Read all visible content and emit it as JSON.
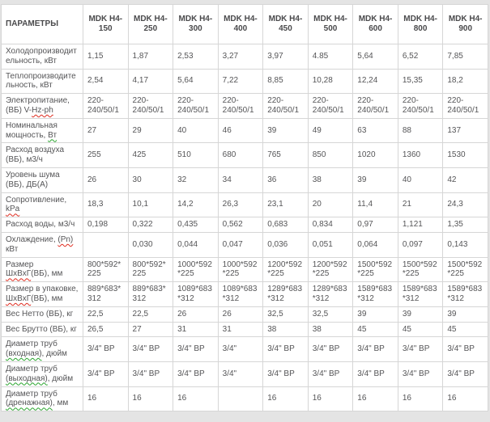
{
  "table": {
    "header": {
      "params_label": "ПАРАМЕТРЫ",
      "models": [
        "MDK H4-150",
        "MDK H4-250",
        "MDK H4-300",
        "MDK H4-400",
        "MDK H4-450",
        "MDK H4-500",
        "MDK H4-600",
        "MDK H4-800",
        "MDK H4-900"
      ]
    },
    "rows": [
      {
        "name": "cooling-capacity",
        "label": [
          {
            "text": "Холодопроизводительность, кВт",
            "mark": "none"
          }
        ],
        "values": [
          "1,15",
          "1,87",
          "2,53",
          "3,27",
          "3,97",
          "4.85",
          "5,64",
          "6,52",
          "7,85"
        ]
      },
      {
        "name": "heating-capacity",
        "label": [
          {
            "text": "Теплопроизводительность, кВт",
            "mark": "none"
          }
        ],
        "values": [
          "2,54",
          "4,17",
          "5,64",
          "7,22",
          "8,85",
          "10,28",
          "12,24",
          "15,35",
          "18,2"
        ]
      },
      {
        "name": "power-supply",
        "label": [
          {
            "text": "Электропитание, (ВБ) V-",
            "mark": "none"
          },
          {
            "text": "Hz-ph",
            "mark": "red"
          }
        ],
        "values": [
          "220-240/50/1",
          "220-240/50/1",
          "220-240/50/1",
          "220-240/50/1",
          "220-240/50/1",
          "220-240/50/1",
          "220-240/50/1",
          "220-240/50/1",
          "220-240/50/1"
        ]
      },
      {
        "name": "nominal-power",
        "label": [
          {
            "text": "Номинальная мощность, ",
            "mark": "none"
          },
          {
            "text": "Вт",
            "mark": "green"
          }
        ],
        "values": [
          "27",
          "29",
          "40",
          "46",
          "39",
          "49",
          "63",
          "88",
          "137"
        ]
      },
      {
        "name": "air-flow",
        "label": [
          {
            "text": "Расход воздуха (ВБ), м3/ч",
            "mark": "none"
          }
        ],
        "values": [
          "255",
          "425",
          "510",
          "680",
          "765",
          "850",
          "1020",
          "1360",
          "1530"
        ]
      },
      {
        "name": "noise-level",
        "label": [
          {
            "text": "Уровень шума (ВБ), ДБ(А)",
            "mark": "none"
          }
        ],
        "values": [
          "26",
          "30",
          "32",
          "34",
          "36",
          "38",
          "39",
          "40",
          "42"
        ]
      },
      {
        "name": "resistance",
        "label": [
          {
            "text": "Сопротивление, ",
            "mark": "none"
          },
          {
            "text": "kPa",
            "mark": "red"
          }
        ],
        "values": [
          "18,3",
          "10,1",
          "14,2",
          "26,3",
          "23,1",
          "20",
          "11,4",
          "21",
          "24,3"
        ]
      },
      {
        "name": "water-flow",
        "label": [
          {
            "text": "Расход воды, м3/ч",
            "mark": "none"
          }
        ],
        "values": [
          "0,198",
          "0,322",
          "0,435",
          "0,562",
          "0,683",
          "0,834",
          "0,97",
          "1,121",
          "1,35"
        ]
      },
      {
        "name": "cooling-pn",
        "label": [
          {
            "text": "Охлаждение, ",
            "mark": "none"
          },
          {
            "text": "(Pn)",
            "mark": "red"
          },
          {
            "text": " кВт",
            "mark": "none"
          }
        ],
        "values": [
          "",
          "0,030",
          "0,044",
          "0,047",
          "0,036",
          "0,051",
          "0,064",
          "0,097",
          "0,143"
        ]
      },
      {
        "name": "dimensions",
        "label": [
          {
            "text": "Размер ",
            "mark": "none"
          },
          {
            "text": "ШхВхГ",
            "mark": "red"
          },
          {
            "text": "(ВБ), мм",
            "mark": "none"
          }
        ],
        "values": [
          "800*592*225",
          "800*592*225",
          "1000*592*225",
          "1000*592*225",
          "1200*592*225",
          "1200*592*225",
          "1500*592*225",
          "1500*592*225",
          "1500*592*225"
        ]
      },
      {
        "name": "package-dimensions",
        "label": [
          {
            "text": "Размер в упаковке, ",
            "mark": "none"
          },
          {
            "text": "ШхВхГ",
            "mark": "red"
          },
          {
            "text": "(ВБ), мм",
            "mark": "none"
          }
        ],
        "values": [
          "889*683*312",
          "889*683*312",
          "1089*683*312",
          "1089*683*312",
          "1289*683*312",
          "1289*683*312",
          "1589*683*312",
          "1589*683*312",
          "1589*683*312"
        ]
      },
      {
        "name": "net-weight",
        "label": [
          {
            "text": "Вес Нетто (ВБ), кг",
            "mark": "none"
          }
        ],
        "values": [
          "22,5",
          "22,5",
          "26",
          "26",
          "32,5",
          "32,5",
          "39",
          "39",
          "39"
        ]
      },
      {
        "name": "gross-weight",
        "label": [
          {
            "text": "Вес Брутто (ВБ), кг",
            "mark": "none"
          }
        ],
        "values": [
          "26,5",
          "27",
          "31",
          "31",
          "38",
          "38",
          "45",
          "45",
          "45"
        ]
      },
      {
        "name": "pipe-inlet-diameter",
        "label": [
          {
            "text": "Диаметр труб ",
            "mark": "none"
          },
          {
            "text": "(входная)",
            "mark": "green"
          },
          {
            "text": ", дюйм",
            "mark": "none"
          }
        ],
        "values": [
          "3/4\" ВР",
          "3/4\" ВР",
          "3/4\" ВР",
          "3/4\"",
          "3/4\" ВР",
          "3/4\" ВР",
          "3/4\" ВР",
          "3/4\" ВР",
          "3/4\" ВР"
        ]
      },
      {
        "name": "pipe-outlet-diameter",
        "label": [
          {
            "text": "Диаметр труб ",
            "mark": "none"
          },
          {
            "text": "(выходная)",
            "mark": "green"
          },
          {
            "text": ", дюйм",
            "mark": "none"
          }
        ],
        "values": [
          "3/4\" ВР",
          "3/4\" ВР",
          "3/4\" ВР",
          "3/4\"",
          "3/4\" ВР",
          "3/4\" ВР",
          "3/4\" ВР",
          "3/4\" ВР",
          "3/4\" ВР"
        ]
      },
      {
        "name": "pipe-drain-diameter",
        "label": [
          {
            "text": "Диаметр труб ",
            "mark": "none"
          },
          {
            "text": "(дренажная)",
            "mark": "green"
          },
          {
            "text": ", мм",
            "mark": "none"
          }
        ],
        "values": [
          "16",
          "16",
          "16",
          "",
          "16",
          "16",
          "16",
          "16",
          "16"
        ]
      }
    ],
    "colors": {
      "page_background": "#e4e4e4",
      "cell_background": "#ffffff",
      "border": "#d6d6d6",
      "text": "#555557",
      "spellcheck_red": "#df2b1e",
      "spellcheck_green": "#27a42b"
    }
  }
}
